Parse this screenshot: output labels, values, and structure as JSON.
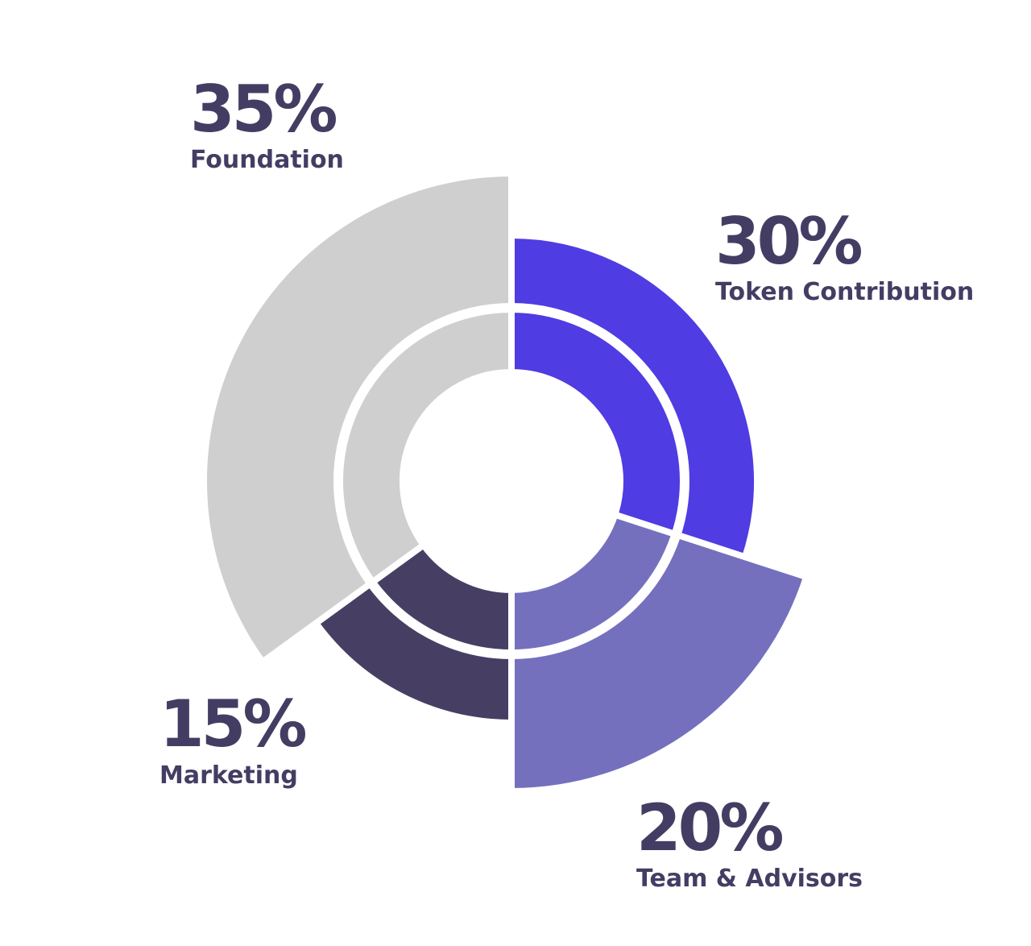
{
  "chart_data": {
    "type": "pie",
    "style": "layered-donut",
    "start_angle_deg": 0,
    "direction": "clockwise",
    "slices": [
      {
        "name": "Token Contribution",
        "value": 30,
        "label": "30%",
        "color": "#4f3ce3",
        "outer_radius": 305
      },
      {
        "name": "Team & Advisors",
        "value": 20,
        "label": "20%",
        "color": "#7470be",
        "outer_radius": 385
      },
      {
        "name": "Marketing",
        "value": 15,
        "label": "15%",
        "color": "#463f63",
        "outer_radius": 300
      },
      {
        "name": "Foundation",
        "value": 35,
        "label": "35%",
        "color": "#cfcfcf",
        "outer_radius": 382
      }
    ]
  }
}
